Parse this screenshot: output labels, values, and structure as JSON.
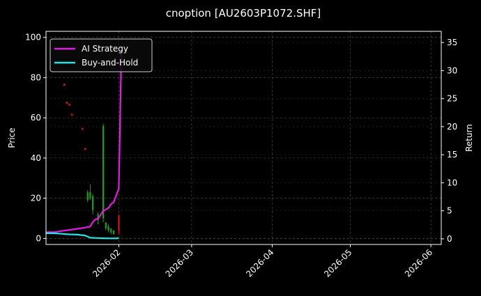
{
  "title": "cnoption [AU2603P1072.SHF]",
  "colors": {
    "background": "#000000",
    "grid": "#555555",
    "strategy": "#e31ce3",
    "buyhold": "#22e5e5",
    "candle_up": "#19a019",
    "candle_down": "#e01010",
    "legend_bg": "#0a0a0a",
    "legend_border": "#cfcfcf"
  },
  "chart_data": {
    "type": "line",
    "title": "cnoption [AU2603P1072.SHF]",
    "xlabel": "",
    "ylabel_left": "Price",
    "ylabel_right": "Return",
    "x_type": "date",
    "xlim": [
      "2026-01-04",
      "2026-06-05"
    ],
    "ylim_left": [
      -3,
      103
    ],
    "ylim_right": [
      -1,
      37
    ],
    "grid": true,
    "legend_placement": "top-left",
    "x_ticks": [
      "2026-02",
      "2026-03",
      "2026-04",
      "2026-05",
      "2026-06"
    ],
    "y_ticks_left": [
      0,
      20,
      40,
      60,
      80,
      100
    ],
    "y_ticks_right": [
      0,
      5,
      10,
      15,
      20,
      25,
      30,
      35
    ],
    "series": [
      {
        "name": "AI Strategy",
        "axis": "right",
        "points": [
          [
            "2026-01-04",
            1.2
          ],
          [
            "2026-01-07",
            1.2
          ],
          [
            "2026-01-10",
            1.4
          ],
          [
            "2026-01-13",
            1.6
          ],
          [
            "2026-01-16",
            1.8
          ],
          [
            "2026-01-19",
            2.0
          ],
          [
            "2026-01-21",
            2.2
          ],
          [
            "2026-01-22",
            3.0
          ],
          [
            "2026-01-23",
            3.5
          ],
          [
            "2026-01-24",
            3.6
          ],
          [
            "2026-01-26",
            5.0
          ],
          [
            "2026-01-28",
            5.5
          ],
          [
            "2026-01-29",
            6.2
          ],
          [
            "2026-01-30",
            6.5
          ],
          [
            "2026-02-01",
            9.0
          ],
          [
            "2026-02-02",
            33.8
          ]
        ]
      },
      {
        "name": "Buy-and-Hold",
        "axis": "right",
        "points": [
          [
            "2026-01-04",
            1.0
          ],
          [
            "2026-01-07",
            1.0
          ],
          [
            "2026-01-10",
            0.9
          ],
          [
            "2026-01-13",
            0.8
          ],
          [
            "2026-01-16",
            0.75
          ],
          [
            "2026-01-19",
            0.6
          ],
          [
            "2026-01-21",
            0.2
          ],
          [
            "2026-01-23",
            0.15
          ],
          [
            "2026-01-26",
            0.1
          ],
          [
            "2026-01-29",
            0.08
          ],
          [
            "2026-02-01",
            0.1
          ]
        ]
      }
    ],
    "candles": [
      {
        "date": "2026-01-11",
        "open": 77,
        "close": 76,
        "high": 77,
        "low": 76
      },
      {
        "date": "2026-01-12",
        "open": 68,
        "close": 67,
        "high": 68,
        "low": 67
      },
      {
        "date": "2026-01-13",
        "open": 67,
        "close": 66,
        "high": 67,
        "low": 66
      },
      {
        "date": "2026-01-14",
        "open": 62,
        "close": 61,
        "high": 62,
        "low": 61
      },
      {
        "date": "2026-01-18",
        "open": 55,
        "close": 54,
        "high": 55,
        "low": 54
      },
      {
        "date": "2026-01-19",
        "open": 45,
        "close": 44,
        "high": 45,
        "low": 44
      },
      {
        "date": "2026-01-20",
        "open": 19,
        "close": 23,
        "high": 24,
        "low": 18
      },
      {
        "date": "2026-01-21",
        "open": 20,
        "close": 23,
        "high": 27,
        "low": 19
      },
      {
        "date": "2026-01-22",
        "open": 14,
        "close": 21,
        "high": 22,
        "low": 12
      },
      {
        "date": "2026-01-24",
        "open": 9,
        "close": 12,
        "high": 13,
        "low": 7
      },
      {
        "date": "2026-01-26",
        "open": 10,
        "close": 56,
        "high": 57,
        "low": 8
      },
      {
        "date": "2026-01-27",
        "open": 5,
        "close": 8,
        "high": 8,
        "low": 4
      },
      {
        "date": "2026-01-28",
        "open": 4,
        "close": 6,
        "high": 7,
        "low": 3
      },
      {
        "date": "2026-01-29",
        "open": 3,
        "close": 5,
        "high": 5,
        "low": 2
      },
      {
        "date": "2026-01-30",
        "open": 2,
        "close": 4,
        "high": 4,
        "low": 2
      },
      {
        "date": "2026-02-01",
        "open": 11,
        "close": 4,
        "high": 12,
        "low": 2
      }
    ]
  }
}
